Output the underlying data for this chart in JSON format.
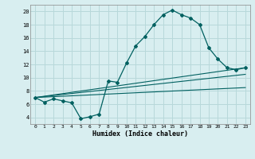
{
  "background_color": "#d8eef0",
  "grid_color": "#b8d8da",
  "line_color": "#006060",
  "marker_color": "#006060",
  "xlabel": "Humidex (Indice chaleur)",
  "xlim": [
    -0.5,
    23.5
  ],
  "ylim": [
    3,
    21
  ],
  "yticks": [
    4,
    6,
    8,
    10,
    12,
    14,
    16,
    18,
    20
  ],
  "xticks": [
    0,
    1,
    2,
    3,
    4,
    5,
    6,
    7,
    8,
    9,
    10,
    11,
    12,
    13,
    14,
    15,
    16,
    17,
    18,
    19,
    20,
    21,
    22,
    23
  ],
  "series": [
    {
      "x": [
        0,
        1,
        2,
        3,
        4,
        5,
        6,
        7,
        8,
        9,
        10,
        11,
        12,
        13,
        14,
        15,
        16,
        17,
        18,
        19,
        20,
        21,
        22,
        23
      ],
      "y": [
        7,
        6.3,
        6.8,
        6.5,
        6.2,
        3.8,
        4.1,
        4.5,
        9.5,
        9.3,
        12.2,
        14.8,
        16.2,
        18.0,
        19.5,
        20.2,
        19.5,
        19.0,
        18.0,
        14.5,
        12.8,
        11.5,
        11.2,
        11.5
      ]
    },
    {
      "x": [
        0,
        23
      ],
      "y": [
        7,
        11.5
      ]
    },
    {
      "x": [
        0,
        23
      ],
      "y": [
        7,
        10.5
      ]
    },
    {
      "x": [
        0,
        23
      ],
      "y": [
        7,
        8.5
      ]
    }
  ]
}
